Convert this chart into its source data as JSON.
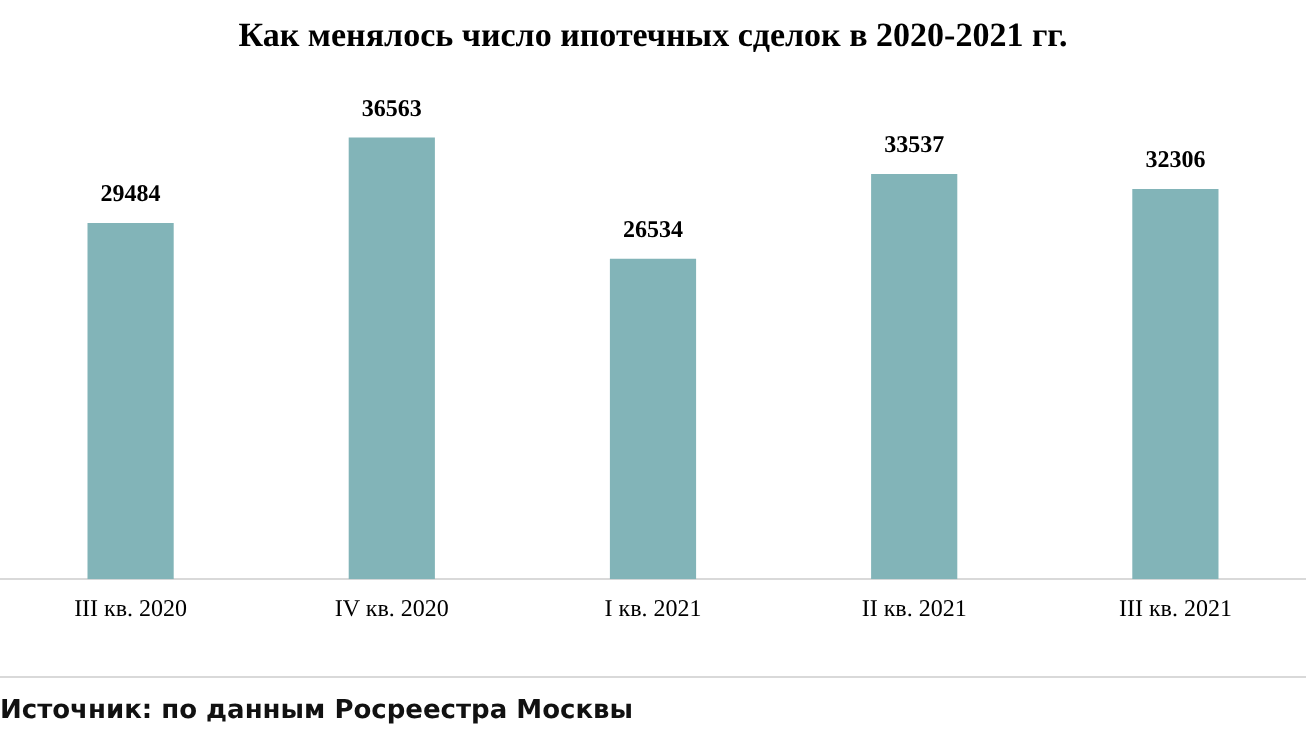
{
  "chart_data": {
    "type": "bar",
    "title": "Как менялось число ипотечных сделок в 2020-2021 гг.",
    "categories": [
      "III кв. 2020",
      "IV кв. 2020",
      "I кв. 2021",
      "II кв. 2021",
      "III кв. 2021"
    ],
    "values": [
      29484,
      36563,
      26534,
      33537,
      32306
    ],
    "color": "#82b4b8",
    "data_labels": true,
    "grid": false,
    "legend": false,
    "annotations": [
      "Источник: по данным Росреестра Москвы"
    ]
  }
}
